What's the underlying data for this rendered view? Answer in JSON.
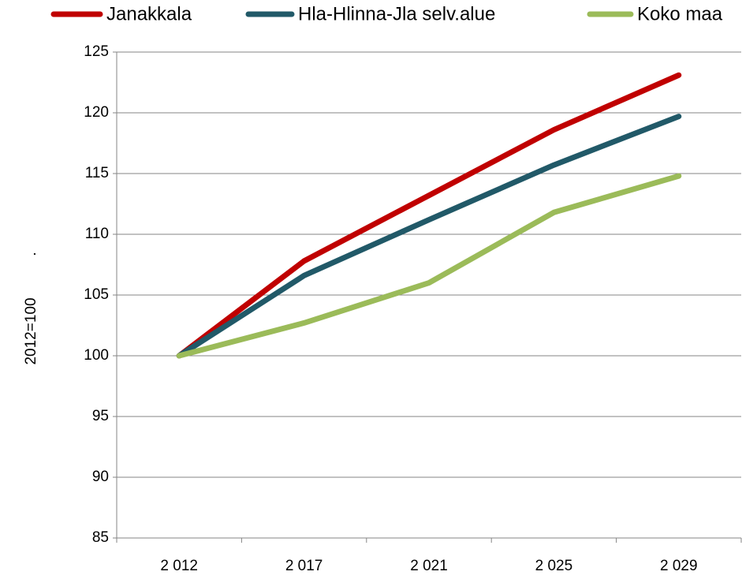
{
  "chart_data": {
    "type": "line",
    "y_label": "2012=100",
    "annotation": ".",
    "categories": [
      "2 012",
      "2 017",
      "2 021",
      "2 025",
      "2 029"
    ],
    "series": [
      {
        "name": "Janakkala",
        "color": "#c00000",
        "values": [
          100,
          107.8,
          113.2,
          118.6,
          123.1
        ]
      },
      {
        "name": "Hla-Hlinna-Jla selv.alue",
        "color": "#215968",
        "values": [
          100,
          106.6,
          111.2,
          115.7,
          119.7
        ]
      },
      {
        "name": "Koko maa",
        "color": "#9bbb59",
        "values": [
          100,
          102.7,
          106,
          111.8,
          114.8
        ]
      }
    ],
    "ylim": [
      85,
      125
    ],
    "yticks": [
      85,
      90,
      95,
      100,
      105,
      110,
      115,
      120,
      125
    ],
    "grid": true
  }
}
